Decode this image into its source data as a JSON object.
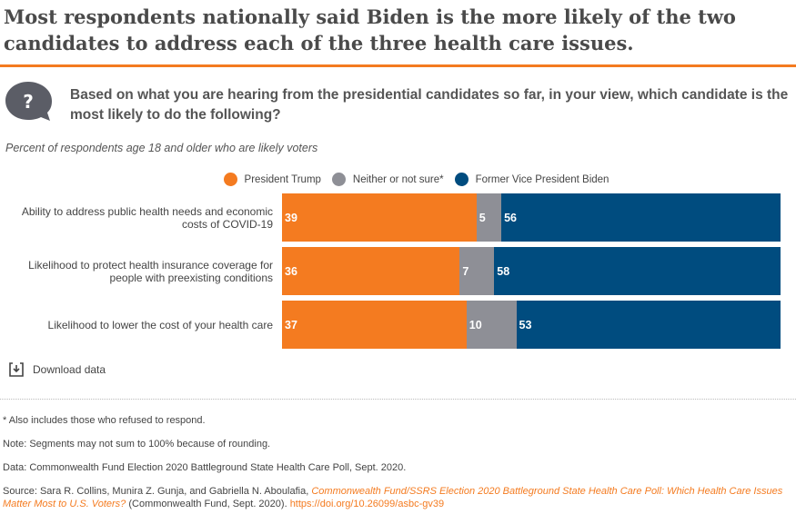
{
  "title": "Most respondents nationally said Biden is the more likely of the two candidates to address each of the three health care issues.",
  "question": "Based on what you are hearing from the presidential candidates so far, in your view, which candidate is the most likely to do the following?",
  "question_icon": "question-bubble-icon",
  "chart_data": {
    "type": "bar",
    "orientation": "horizontal",
    "stacked": true,
    "subtitle": "Percent of respondents age 18 and older who are likely voters",
    "categories": [
      "Ability to address public health needs and economic costs of COVID-19",
      "Likelihood to protect health insurance coverage for people with preexisting conditions",
      "Likelihood to lower the cost of your health care"
    ],
    "series": [
      {
        "name": "President Trump",
        "color": "#f47b20",
        "values": [
          39,
          36,
          37
        ]
      },
      {
        "name": "Neither or not sure*",
        "color": "#8e8f96",
        "values": [
          5,
          7,
          10
        ]
      },
      {
        "name": "Former Vice President Biden",
        "color": "#004c7f",
        "values": [
          56,
          58,
          53
        ]
      }
    ],
    "legend_position": "top",
    "grid": false
  },
  "download_label": "Download data",
  "footnotes": {
    "asterisk": "* Also includes those who refused to respond.",
    "note": "Note: Segments may not sum to 100% because of rounding.",
    "data": "Data: Commonwealth Fund Election 2020 Battleground State Health Care Poll, Sept. 2020.",
    "source_prefix": "Source: Sara R. Collins, Munira Z. Gunja, and Gabriella N. Aboulafia, ",
    "source_title": "Commonwealth Fund/SSRS Election 2020 Battleground State Health Care Poll: Which Health Care Issues Matter Most to U.S. Voters?",
    "source_mid": " (Commonwealth Fund, Sept. 2020). ",
    "source_link": "https://doi.org/10.26099/asbc-gv39"
  }
}
